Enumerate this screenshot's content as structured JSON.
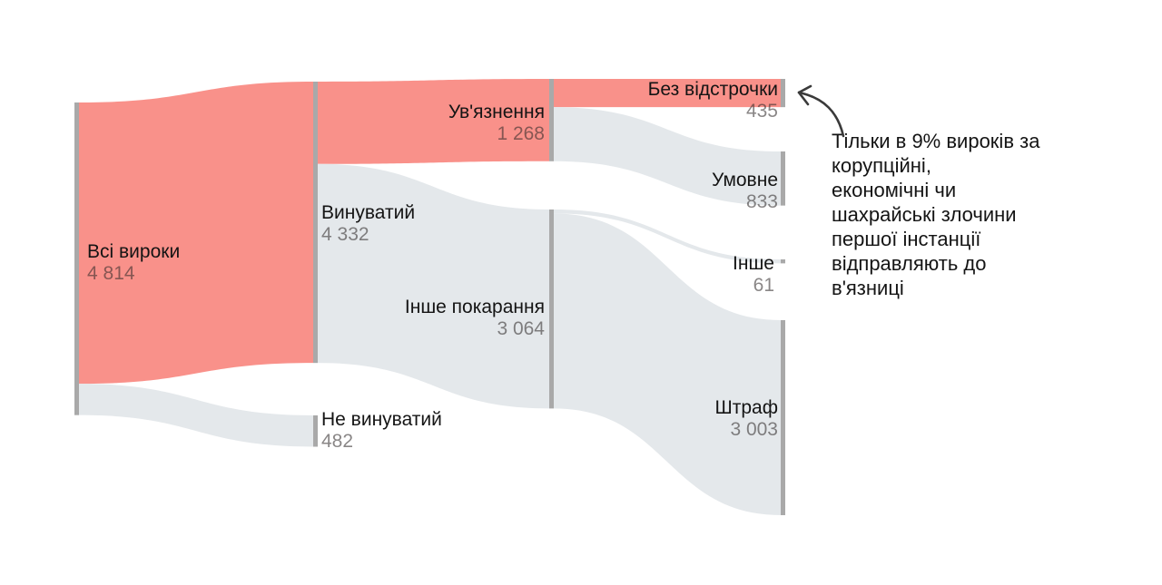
{
  "chart_data": {
    "type": "sankey",
    "title": "",
    "legend": "none",
    "grid": "off",
    "unit_total": 4814,
    "nodes": [
      {
        "id": "all",
        "label": "Всі вироки",
        "value": 4814,
        "value_str": "4 814",
        "column": 0
      },
      {
        "id": "guilty",
        "label": "Винуватий",
        "value": 4332,
        "value_str": "4 332",
        "column": 1
      },
      {
        "id": "not_guilty",
        "label": "Не винуватий",
        "value": 482,
        "value_str": "482",
        "column": 1
      },
      {
        "id": "imprisonment",
        "label": "Ув'язнення",
        "value": 1268,
        "value_str": "1 268",
        "column": 2
      },
      {
        "id": "other_punishment",
        "label": "Інше покарання",
        "value": 3064,
        "value_str": "3 064",
        "column": 2
      },
      {
        "id": "no_deferral",
        "label": "Без відстрочки",
        "value": 435,
        "value_str": "435",
        "column": 3
      },
      {
        "id": "conditional",
        "label": "Умовне",
        "value": 833,
        "value_str": "833",
        "column": 3
      },
      {
        "id": "other",
        "label": "Інше",
        "value": 61,
        "value_str": "61",
        "column": 3
      },
      {
        "id": "fine",
        "label": "Штраф",
        "value": 3003,
        "value_str": "3 003",
        "column": 3
      }
    ],
    "links": [
      {
        "source": "all",
        "target": "guilty",
        "value": 4332,
        "color": "highlight"
      },
      {
        "source": "all",
        "target": "not_guilty",
        "value": 482,
        "color": "base"
      },
      {
        "source": "guilty",
        "target": "imprisonment",
        "value": 1268,
        "color": "highlight"
      },
      {
        "source": "guilty",
        "target": "other_punishment",
        "value": 3064,
        "color": "base"
      },
      {
        "source": "imprisonment",
        "target": "no_deferral",
        "value": 435,
        "color": "highlight"
      },
      {
        "source": "imprisonment",
        "target": "conditional",
        "value": 833,
        "color": "base"
      },
      {
        "source": "other_punishment",
        "target": "other",
        "value": 61,
        "color": "base"
      },
      {
        "source": "other_punishment",
        "target": "fine",
        "value": 3003,
        "color": "base"
      }
    ],
    "annotation": {
      "text": "Тільки в 9% вироків за\nкорупційні,\nекономічні чи\nшахрайські злочини\nпершої інстанції\nвідправляють до\nв'язниці"
    },
    "colors": {
      "highlight": "#F9918A",
      "base": "#E4E8EB",
      "node_bar": "#A9A9A9",
      "label": "#141414",
      "value": "#8E8E8E",
      "arrow": "#3A3A3A"
    }
  }
}
